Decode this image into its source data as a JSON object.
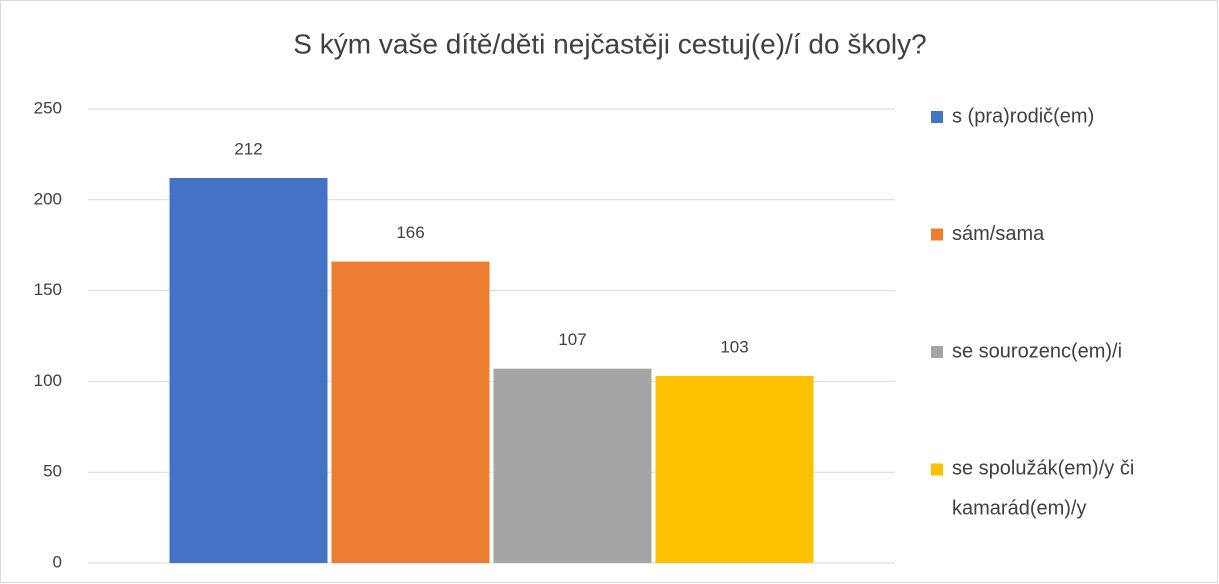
{
  "chart_data": {
    "type": "bar",
    "title": "S kým vaše dítě/děti nejčastěji cestuj(e)/í do školy?",
    "categories": [
      null
    ],
    "series": [
      {
        "name": "s (pra)rodič(em)",
        "color": "#4472c4",
        "values": [
          212
        ]
      },
      {
        "name": "sám/sama",
        "color": "#ed7d31",
        "values": [
          166
        ]
      },
      {
        "name": "se sourozenc(em)/i",
        "color": "#a5a5a5",
        "values": [
          107
        ]
      },
      {
        "name": "se spolužák(em)/y či kamarád(em)/y",
        "color": "#ffc000",
        "values": [
          103
        ]
      }
    ],
    "ylim": [
      0,
      250
    ],
    "yticks": [
      0,
      50,
      100,
      150,
      200,
      250
    ],
    "grid": true,
    "legend": "right",
    "data_labels": true
  }
}
